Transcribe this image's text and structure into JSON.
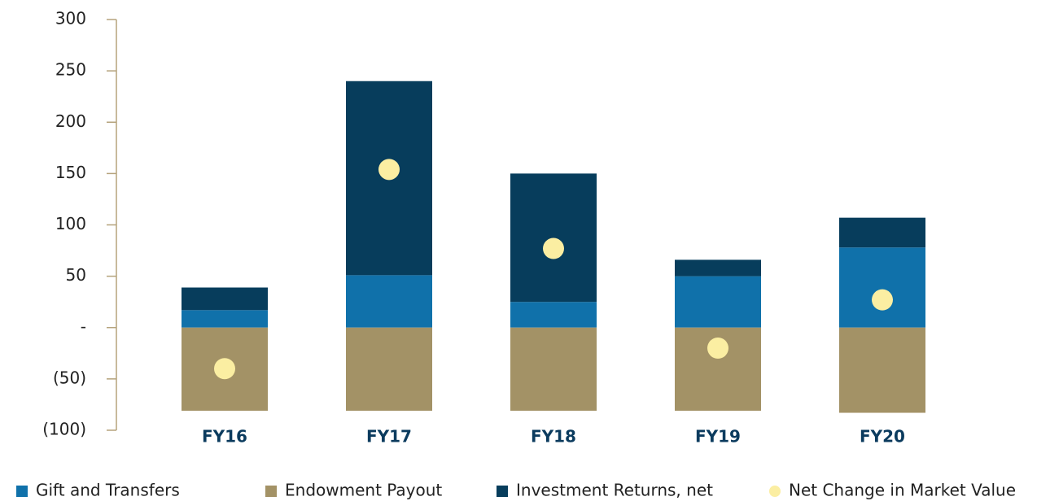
{
  "chart_data": {
    "type": "bar",
    "stacked": true,
    "categories": [
      "FY16",
      "FY17",
      "FY18",
      "FY19",
      "FY20"
    ],
    "series": [
      {
        "name": "Gift and Transfers",
        "color": "#1071aa",
        "values": [
          17,
          51,
          25,
          50,
          78
        ]
      },
      {
        "name": "Endowment Payout",
        "color": "#a39266",
        "values": [
          -81,
          -81,
          -81,
          -81,
          -83
        ]
      },
      {
        "name": "Investment Returns, net",
        "color": "#073d5c",
        "values": [
          22,
          189,
          125,
          16,
          29
        ]
      },
      {
        "name": "Net Change in Market Value",
        "color": "#fbeea2",
        "type": "scatter",
        "values": [
          -40,
          154,
          77,
          -20,
          27
        ]
      }
    ],
    "ylim": [
      -100,
      300
    ],
    "yticks": [
      {
        "value": -100,
        "label": "(100)"
      },
      {
        "value": -50,
        "label": "(50)"
      },
      {
        "value": 0,
        "label": "-"
      },
      50,
      100,
      150,
      200,
      250,
      300
    ],
    "legend": "bottom"
  }
}
